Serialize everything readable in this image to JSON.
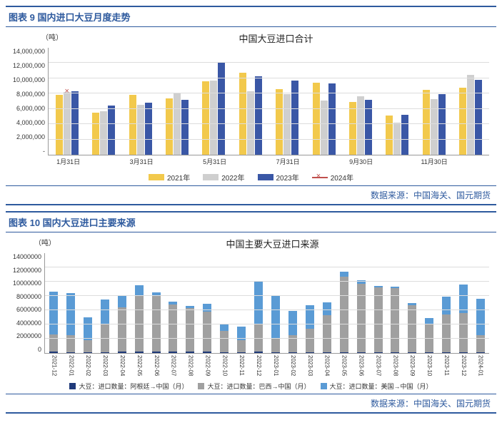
{
  "chart1": {
    "header": "图表 9  国内进口大豆月度走势",
    "unit": "（吨）",
    "title": "中国大豆进口合计",
    "type": "bar-grouped",
    "ymax": 14000000,
    "y_ticks": [
      "14,000,000",
      "12,000,000",
      "10,000,000",
      "8,000,000",
      "6,000,000",
      "4,000,000",
      "2,000,000",
      "-"
    ],
    "x_labels": [
      "1月31日",
      "",
      "3月31日",
      "",
      "5月31日",
      "",
      "7月31日",
      "",
      "9月30日",
      "",
      "11月30日",
      ""
    ],
    "series": [
      {
        "name": "2021年",
        "color": "#f2c94c",
        "values": [
          7800000,
          5500000,
          7800000,
          7400000,
          9600000,
          10700000,
          8600000,
          9400000,
          6900000,
          5100000,
          8500000,
          8800000
        ]
      },
      {
        "name": "2022年",
        "color": "#cfcfcf",
        "values": [
          8200000,
          5700000,
          6500000,
          8100000,
          9700000,
          8300000,
          7900000,
          7100000,
          7700000,
          4200000,
          7300000,
          10500000
        ]
      },
      {
        "name": "2023年",
        "color": "#3a57a6",
        "values": [
          8300000,
          6400000,
          6800000,
          7200000,
          12000000,
          10300000,
          9700000,
          9300000,
          7200000,
          5200000,
          7900000,
          9800000
        ]
      }
    ],
    "marker_series": {
      "name": "2024年",
      "color": "#c0504d",
      "values": [
        8300000,
        null,
        null,
        null,
        null,
        null,
        null,
        null,
        null,
        null,
        null,
        null
      ]
    },
    "legend": [
      {
        "label": "2021年",
        "color": "#f2c94c",
        "type": "bar"
      },
      {
        "label": "2022年",
        "color": "#cfcfcf",
        "type": "bar"
      },
      {
        "label": "2023年",
        "color": "#3a57a6",
        "type": "bar"
      },
      {
        "label": "2024年",
        "color": "#c0504d",
        "type": "marker"
      }
    ],
    "source": "数据来源：中国海关、国元期货"
  },
  "chart2": {
    "header": "图表 10  国内大豆进口主要来源",
    "unit": "（吨）",
    "title": "中国主要大豆进口来源",
    "type": "bar-stacked",
    "ymax": 14000000,
    "y_ticks": [
      "14000000",
      "12000000",
      "10000000",
      "8000000",
      "6000000",
      "4000000",
      "2000000",
      "0"
    ],
    "x_labels": [
      "2021-12",
      "2022-01",
      "2022-02",
      "2022-03",
      "2022-04",
      "2022-05",
      "2022-06",
      "2022-07",
      "2022-08",
      "2022-09",
      "2022-10",
      "2022-11",
      "2022-12",
      "2023-01",
      "2023-02",
      "2023-03",
      "2023-04",
      "2023-05",
      "2023-06",
      "2023-07",
      "2023-08",
      "2023-09",
      "2023-10",
      "2023-11",
      "2023-12",
      "2024-01"
    ],
    "series": [
      {
        "name": "大豆：进口数量：阿根廷→中国（月）",
        "key": "argentina",
        "color": "#1f3a7a"
      },
      {
        "name": "大豆：进口数量：巴西→中国（月）",
        "key": "brazil",
        "color": "#a0a0a0"
      },
      {
        "name": "大豆：进口数量：美国→中国（月）",
        "key": "usa",
        "color": "#5a9bd5"
      }
    ],
    "data": [
      {
        "argentina": 200000,
        "brazil": 2400000,
        "usa": 6000000
      },
      {
        "argentina": 100000,
        "brazil": 2400000,
        "usa": 5900000
      },
      {
        "argentina": 100000,
        "brazil": 1700000,
        "usa": 3200000
      },
      {
        "argentina": 150000,
        "brazil": 4000000,
        "usa": 3400000
      },
      {
        "argentina": 200000,
        "brazil": 6200000,
        "usa": 1700000
      },
      {
        "argentina": 200000,
        "brazil": 7800000,
        "usa": 1500000
      },
      {
        "argentina": 200000,
        "brazil": 7800000,
        "usa": 500000
      },
      {
        "argentina": 200000,
        "brazil": 6600000,
        "usa": 400000
      },
      {
        "argentina": 200000,
        "brazil": 6100000,
        "usa": 300000
      },
      {
        "argentina": 200000,
        "brazil": 5600000,
        "usa": 1100000
      },
      {
        "argentina": 150000,
        "brazil": 3000000,
        "usa": 900000
      },
      {
        "argentina": 150000,
        "brazil": 1700000,
        "usa": 1900000
      },
      {
        "argentina": 200000,
        "brazil": 3800000,
        "usa": 6000000
      },
      {
        "argentina": 100000,
        "brazil": 2000000,
        "usa": 5900000
      },
      {
        "argentina": 100000,
        "brazil": 2400000,
        "usa": 3400000
      },
      {
        "argentina": 100000,
        "brazil": 3300000,
        "usa": 3300000
      },
      {
        "argentina": 100000,
        "brazil": 5200000,
        "usa": 1800000
      },
      {
        "argentina": 100000,
        "brazil": 10600000,
        "usa": 700000
      },
      {
        "argentina": 100000,
        "brazil": 9600000,
        "usa": 500000
      },
      {
        "argentina": 100000,
        "brazil": 9100000,
        "usa": 200000
      },
      {
        "argentina": 100000,
        "brazil": 9000000,
        "usa": 200000
      },
      {
        "argentina": 100000,
        "brazil": 6600000,
        "usa": 300000
      },
      {
        "argentina": 100000,
        "brazil": 4000000,
        "usa": 800000
      },
      {
        "argentina": 100000,
        "brazil": 5300000,
        "usa": 2500000
      },
      {
        "argentina": 100000,
        "brazil": 5500000,
        "usa": 4000000
      },
      {
        "argentina": 100000,
        "brazil": 2400000,
        "usa": 5100000
      }
    ],
    "source": "数据来源：中国海关、国元期货"
  }
}
